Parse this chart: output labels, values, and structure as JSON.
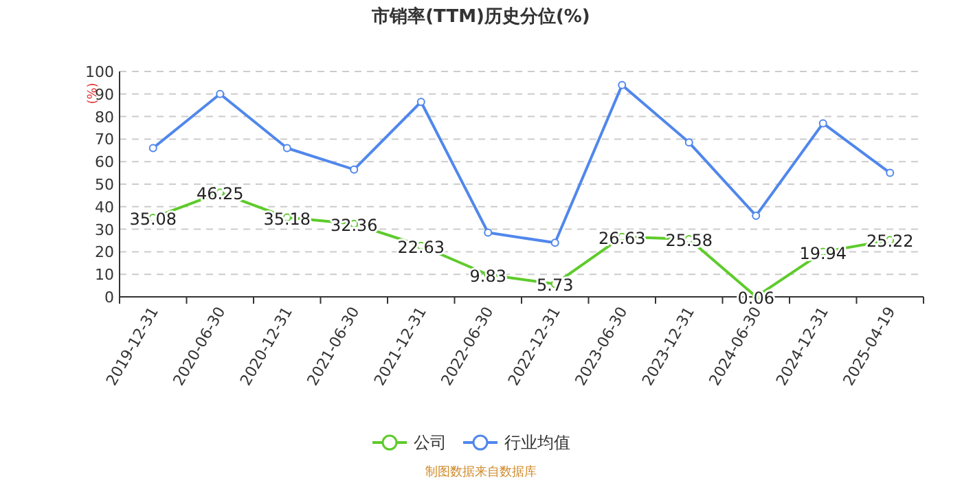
{
  "chart_data": {
    "type": "line",
    "title": "市销率(TTM)历史分位(%)",
    "ylabel": "(%)",
    "categories": [
      "2019-12-31",
      "2020-06-30",
      "2020-12-31",
      "2021-06-30",
      "2021-12-31",
      "2022-06-30",
      "2022-12-31",
      "2023-06-30",
      "2023-12-31",
      "2024-06-30",
      "2024-12-31",
      "2025-04-19"
    ],
    "series": [
      {
        "name": "公司",
        "color": "#5ecb2b",
        "values": [
          35.08,
          46.25,
          35.18,
          32.36,
          22.63,
          9.83,
          5.73,
          26.63,
          25.58,
          0.06,
          19.94,
          25.22
        ],
        "value_labels": [
          "35.08",
          "46.25",
          "35.18",
          "32.36",
          "22.63",
          "9.83",
          "5.73",
          "26.63",
          "25.58",
          "0.06",
          "19.94",
          "25.22"
        ]
      },
      {
        "name": "行业均值",
        "color": "#5087ec",
        "values": [
          66,
          90,
          66,
          56.5,
          86.5,
          28.5,
          24,
          94,
          68.5,
          36,
          77,
          55
        ]
      }
    ],
    "ylim": [
      0,
      100
    ],
    "yticks": [
      0,
      10,
      20,
      30,
      40,
      50,
      60,
      70,
      80,
      90,
      100
    ],
    "grid": "y",
    "legend": "bottom",
    "marker": "circle",
    "line_style": "solid",
    "annotations": [
      "制图数据来自数据库"
    ]
  }
}
